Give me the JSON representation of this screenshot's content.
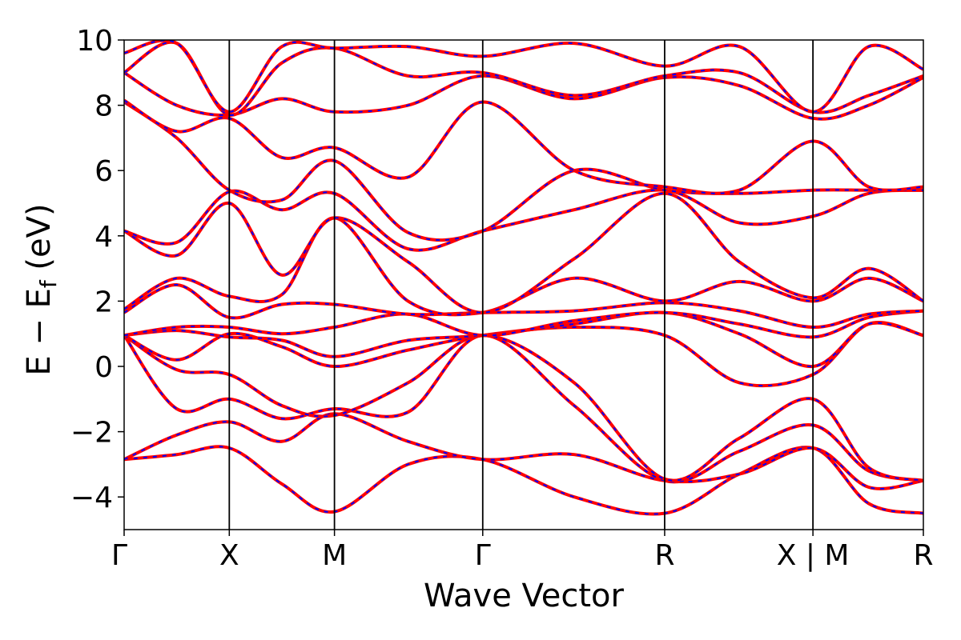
{
  "chart_data": {
    "type": "line",
    "title": "",
    "xlabel": "Wave Vector",
    "ylabel": "E − E_f (eV)",
    "ylabel_parts": {
      "main": "E − E",
      "sub": "f",
      "unit": " (eV)"
    },
    "ylim": [
      -5,
      10
    ],
    "yticks": [
      -4,
      -2,
      0,
      2,
      4,
      6,
      8,
      10
    ],
    "ytick_labels": [
      "−4",
      "−2",
      "0",
      "2",
      "4",
      "6",
      "8",
      "10"
    ],
    "xlim": [
      0,
      7.6
    ],
    "kpoints": [
      {
        "label": "Γ",
        "x": 0.0
      },
      {
        "label": "X",
        "x": 1.0
      },
      {
        "label": "M",
        "x": 2.0
      },
      {
        "label": "Γ",
        "x": 3.41
      },
      {
        "label": "R",
        "x": 5.14
      },
      {
        "label": "X | M",
        "x": 6.55
      },
      {
        "label": "R",
        "x": 7.6
      }
    ],
    "grid": false,
    "legend": "none",
    "colors": {
      "primary": "#ff0000",
      "secondary": "#0000ff"
    },
    "bands": {
      "x": [
        0.0,
        0.5,
        1.0,
        1.5,
        2.0,
        2.7,
        3.41,
        4.28,
        5.14,
        5.85,
        6.55,
        7.08,
        7.6
      ],
      "series": [
        {
          "values": [
            -2.85,
            -2.7,
            -2.5,
            -3.6,
            -4.45,
            -3.0,
            -2.85,
            -4.0,
            -4.5,
            -3.3,
            -2.5,
            -4.2,
            -4.5
          ]
        },
        {
          "values": [
            -2.85,
            -2.1,
            -1.7,
            -2.3,
            -1.45,
            -2.3,
            -2.85,
            -2.7,
            -3.5,
            -3.3,
            -2.5,
            -3.7,
            -3.5
          ]
        },
        {
          "values": [
            0.95,
            -1.3,
            -1.0,
            -1.6,
            -1.3,
            -1.4,
            0.95,
            -1.2,
            -3.5,
            -2.6,
            -1.8,
            -3.2,
            -3.5
          ]
        },
        {
          "values": [
            0.95,
            -0.1,
            -0.25,
            -1.2,
            -1.5,
            -0.5,
            0.95,
            -0.5,
            -3.45,
            -2.2,
            -1.0,
            -3.1,
            -3.5
          ]
        },
        {
          "values": [
            0.95,
            0.2,
            1.0,
            0.6,
            0.0,
            0.5,
            0.95,
            1.2,
            0.95,
            -0.5,
            -0.25,
            1.3,
            0.95
          ]
        },
        {
          "values": [
            0.95,
            1.1,
            0.9,
            0.8,
            0.3,
            0.8,
            0.95,
            1.3,
            1.65,
            1.0,
            0.0,
            1.3,
            0.95
          ]
        },
        {
          "values": [
            0.95,
            1.2,
            1.2,
            1.0,
            1.2,
            1.6,
            0.95,
            1.4,
            1.65,
            1.3,
            0.9,
            1.5,
            1.7
          ]
        },
        {
          "values": [
            1.65,
            2.5,
            1.5,
            1.9,
            1.9,
            1.6,
            1.65,
            1.7,
            1.95,
            1.7,
            1.2,
            1.6,
            1.7
          ]
        },
        {
          "values": [
            1.75,
            2.7,
            2.15,
            2.2,
            4.55,
            2.0,
            1.65,
            2.7,
            2.0,
            2.6,
            2.0,
            2.7,
            2.0
          ]
        },
        {
          "values": [
            4.15,
            3.4,
            5.0,
            2.8,
            4.55,
            3.2,
            1.65,
            3.3,
            5.3,
            3.2,
            2.1,
            3.0,
            2.0
          ]
        },
        {
          "values": [
            4.15,
            3.8,
            5.35,
            4.8,
            5.3,
            3.6,
            4.15,
            4.8,
            5.4,
            4.4,
            4.6,
            5.3,
            5.4
          ]
        },
        {
          "values": [
            8.1,
            7.0,
            5.4,
            5.1,
            6.3,
            4.1,
            4.15,
            6.0,
            5.4,
            5.3,
            5.4,
            5.4,
            5.4
          ]
        },
        {
          "values": [
            8.15,
            7.2,
            7.6,
            6.4,
            6.7,
            5.8,
            8.1,
            6.0,
            5.5,
            5.4,
            6.9,
            5.5,
            5.5
          ]
        },
        {
          "values": [
            9.0,
            8.0,
            7.7,
            8.2,
            7.8,
            8.0,
            8.9,
            8.2,
            8.85,
            8.6,
            7.6,
            8.0,
            8.85
          ]
        },
        {
          "values": [
            9.0,
            9.9,
            7.7,
            9.3,
            9.75,
            8.9,
            9.0,
            8.3,
            8.9,
            9.0,
            7.8,
            8.3,
            8.9
          ]
        },
        {
          "values": [
            9.6,
            9.9,
            7.8,
            9.8,
            9.75,
            9.8,
            9.5,
            9.9,
            9.2,
            9.8,
            7.8,
            9.8,
            9.1
          ]
        }
      ]
    }
  }
}
